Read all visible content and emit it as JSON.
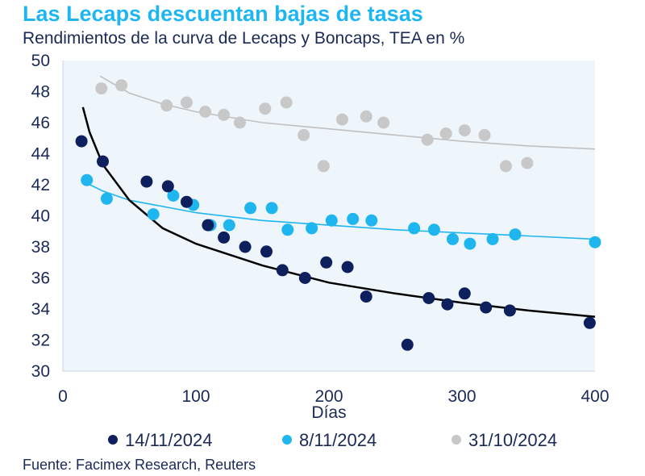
{
  "header": {
    "title": "Las Lecaps descuentan bajas de tasas",
    "subtitle": "Rendimientos de la curva de Lecaps y Boncaps, TEA en %"
  },
  "footer": {
    "source": "Fuente: Facimex Research, Reuters"
  },
  "chart_data": {
    "type": "scatter",
    "title": "Las Lecaps descuentan bajas de tasas",
    "subtitle": "Rendimientos de la curva de Lecaps y Boncaps, TEA en %",
    "xlabel": "Días",
    "ylabel": "",
    "xlim": [
      0,
      400
    ],
    "ylim": [
      30,
      50
    ],
    "xticks": [
      0,
      100,
      200,
      300,
      400
    ],
    "yticks": [
      30,
      32,
      34,
      36,
      38,
      40,
      42,
      44,
      46,
      48,
      50
    ],
    "grid": false,
    "legend": "bottom",
    "plot_background": "#eef5fb",
    "series": [
      {
        "name": "14/11/2024",
        "color": "#0d1f5c",
        "trend_color": "#000000",
        "trend": {
          "type": "log",
          "points": [
            [
              15,
              47.0
            ],
            [
              20,
              45.4
            ],
            [
              30,
              43.3
            ],
            [
              50,
              41.0
            ],
            [
              75,
              39.2
            ],
            [
              100,
              38.2
            ],
            [
              150,
              36.8
            ],
            [
              200,
              35.7
            ],
            [
              250,
              35.0
            ],
            [
              300,
              34.4
            ],
            [
              350,
              33.9
            ],
            [
              400,
              33.5
            ]
          ]
        },
        "points": [
          [
            14,
            44.8
          ],
          [
            30,
            43.5
          ],
          [
            63,
            42.2
          ],
          [
            79,
            41.9
          ],
          [
            93,
            40.9
          ],
          [
            109,
            39.4
          ],
          [
            121,
            38.6
          ],
          [
            137,
            38.0
          ],
          [
            153,
            37.7
          ],
          [
            165,
            36.5
          ],
          [
            182,
            36.0
          ],
          [
            198,
            37.0
          ],
          [
            214,
            36.7
          ],
          [
            228,
            34.8
          ],
          [
            259,
            31.7
          ],
          [
            275,
            34.7
          ],
          [
            289,
            34.3
          ],
          [
            302,
            35.0
          ],
          [
            318,
            34.1
          ],
          [
            336,
            33.9
          ],
          [
            396,
            33.1
          ]
        ]
      },
      {
        "name": "8/11/2024",
        "color": "#1fb6f0",
        "trend_color": "#1fb6f0",
        "trend": {
          "type": "log",
          "points": [
            [
              18,
              42.1
            ],
            [
              30,
              41.6
            ],
            [
              50,
              41.0
            ],
            [
              75,
              40.6
            ],
            [
              100,
              40.2
            ],
            [
              150,
              39.7
            ],
            [
              200,
              39.4
            ],
            [
              250,
              39.1
            ],
            [
              300,
              38.9
            ],
            [
              350,
              38.7
            ],
            [
              400,
              38.5
            ]
          ]
        },
        "points": [
          [
            18,
            42.3
          ],
          [
            33,
            41.1
          ],
          [
            68,
            40.1
          ],
          [
            83,
            41.3
          ],
          [
            98,
            40.7
          ],
          [
            111,
            39.4
          ],
          [
            125,
            39.4
          ],
          [
            141,
            40.5
          ],
          [
            157,
            40.5
          ],
          [
            169,
            39.1
          ],
          [
            187,
            39.2
          ],
          [
            202,
            39.7
          ],
          [
            218,
            39.8
          ],
          [
            232,
            39.7
          ],
          [
            264,
            39.2
          ],
          [
            279,
            39.1
          ],
          [
            293,
            38.5
          ],
          [
            306,
            38.2
          ],
          [
            323,
            38.5
          ],
          [
            340,
            38.8
          ],
          [
            400,
            38.3
          ]
        ]
      },
      {
        "name": "31/10/2024",
        "color": "#c8c8c8",
        "trend_color": "#c0c0c0",
        "trend": {
          "type": "log",
          "points": [
            [
              28,
              49.0
            ],
            [
              50,
              47.9
            ],
            [
              75,
              47.2
            ],
            [
              100,
              46.7
            ],
            [
              150,
              46.0
            ],
            [
              200,
              45.6
            ],
            [
              250,
              45.2
            ],
            [
              300,
              44.8
            ],
            [
              350,
              44.5
            ],
            [
              400,
              44.3
            ]
          ]
        },
        "points": [
          [
            29,
            48.2
          ],
          [
            44,
            48.4
          ],
          [
            78,
            47.1
          ],
          [
            93,
            47.3
          ],
          [
            107,
            46.7
          ],
          [
            121,
            46.5
          ],
          [
            133,
            46.0
          ],
          [
            152,
            46.9
          ],
          [
            168,
            47.3
          ],
          [
            181,
            45.2
          ],
          [
            196,
            43.2
          ],
          [
            210,
            46.2
          ],
          [
            228,
            46.4
          ],
          [
            241,
            46.0
          ],
          [
            274,
            44.9
          ],
          [
            288,
            45.3
          ],
          [
            302,
            45.5
          ],
          [
            317,
            45.2
          ],
          [
            333,
            43.2
          ],
          [
            349,
            43.4
          ]
        ]
      }
    ]
  }
}
